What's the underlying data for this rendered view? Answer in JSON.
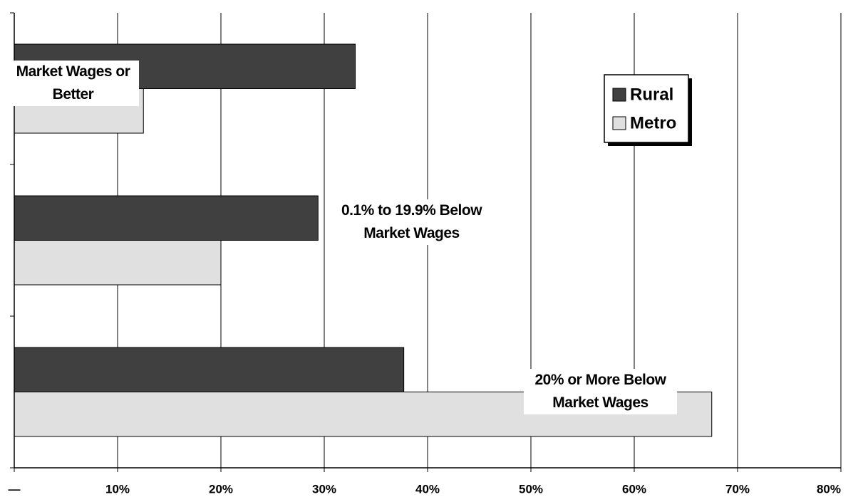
{
  "chart_data": {
    "type": "barh",
    "categories": [
      "Market Wages or Better",
      "0.1% to 19.9% Below Market Wages",
      "20% or More Below Market Wages"
    ],
    "series": [
      {
        "name": "Rural",
        "color": "#404040",
        "values": [
          33.0,
          29.4,
          37.7
        ]
      },
      {
        "name": "Metro",
        "color": "#e0e0e0",
        "values": [
          12.5,
          20.0,
          67.5
        ]
      }
    ],
    "xlim": [
      0,
      80
    ],
    "xticks": [
      {
        "value": 0,
        "label": "—"
      },
      {
        "value": 10,
        "label": "10%"
      },
      {
        "value": 20,
        "label": "20%"
      },
      {
        "value": 30,
        "label": "30%"
      },
      {
        "value": 40,
        "label": "40%"
      },
      {
        "value": 50,
        "label": "50%"
      },
      {
        "value": 60,
        "label": "60%"
      },
      {
        "value": 70,
        "label": "70%"
      },
      {
        "value": 80,
        "label": "80%"
      }
    ],
    "grid": true,
    "legend": "upper right"
  }
}
